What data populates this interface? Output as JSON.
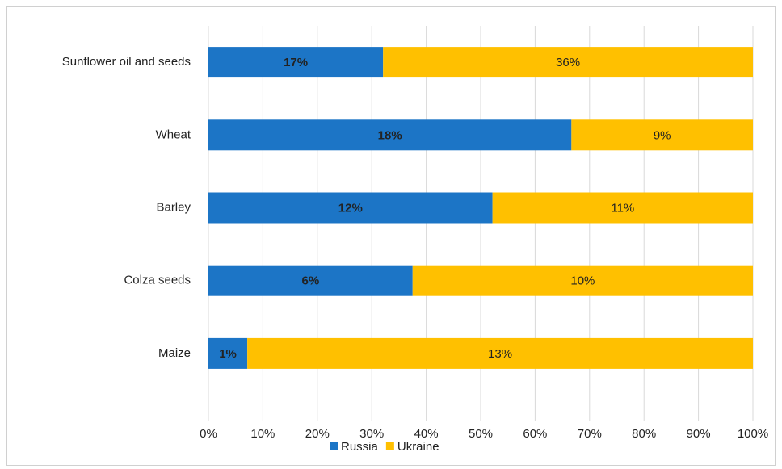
{
  "chart_data": {
    "type": "bar",
    "orientation": "horizontal",
    "stacking": "percent",
    "categories": [
      "Sunflower oil and seeds",
      "Wheat",
      "Barley",
      "Colza seeds",
      "Maize"
    ],
    "series": [
      {
        "name": "Russia",
        "color": "#1c75c6",
        "values": [
          17,
          18,
          12,
          6,
          1
        ],
        "value_labels": [
          "17%",
          "18%",
          "12%",
          "6%",
          "1%"
        ]
      },
      {
        "name": "Ukraine",
        "color": "#ffc000",
        "values": [
          36,
          9,
          11,
          10,
          13
        ],
        "value_labels": [
          "36%",
          "9%",
          "11%",
          "10%",
          "13%"
        ]
      }
    ],
    "xlim": [
      0,
      100
    ],
    "xticks": [
      {
        "value": 0,
        "label": "0%"
      },
      {
        "value": 10,
        "label": "10%"
      },
      {
        "value": 20,
        "label": "20%"
      },
      {
        "value": 30,
        "label": "30%"
      },
      {
        "value": 40,
        "label": "40%"
      },
      {
        "value": 50,
        "label": "50%"
      },
      {
        "value": 60,
        "label": "60%"
      },
      {
        "value": 70,
        "label": "70%"
      },
      {
        "value": 80,
        "label": "80%"
      },
      {
        "value": 90,
        "label": "90%"
      },
      {
        "value": 100,
        "label": "100%"
      }
    ],
    "grid": true,
    "legend": "bottom"
  }
}
